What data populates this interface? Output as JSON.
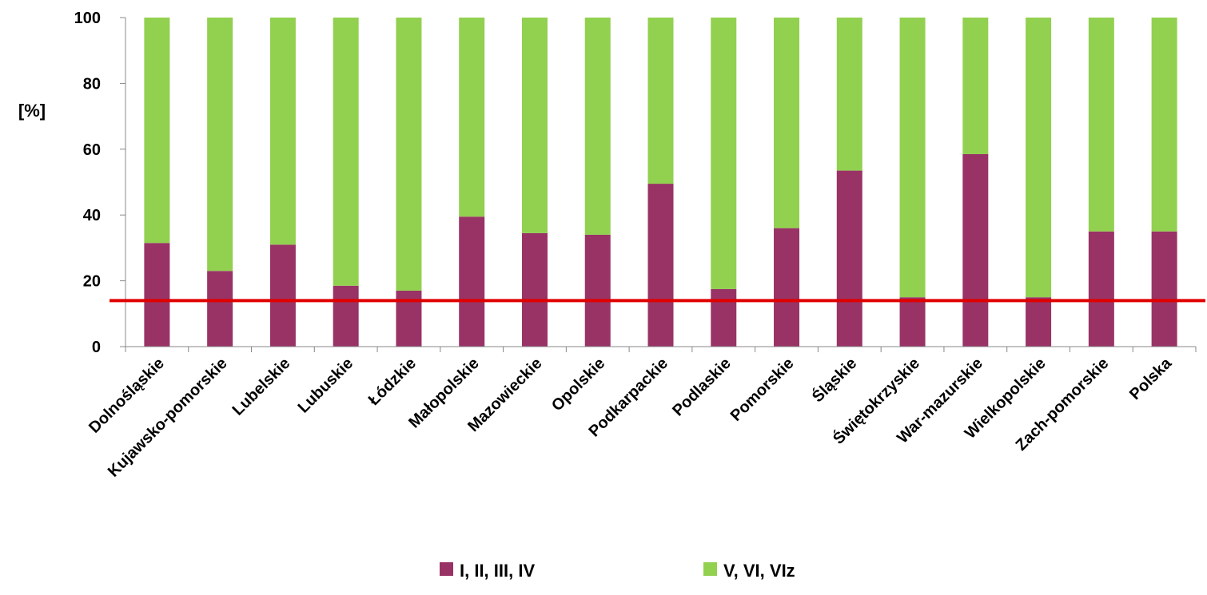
{
  "chart_data": {
    "type": "bar",
    "stacked": true,
    "ylabel": "[%]",
    "ylim": [
      0,
      100
    ],
    "yticks": [
      "0",
      "20",
      "40",
      "60",
      "80",
      "100"
    ],
    "categories": [
      "Dolnośląskie",
      "Kujawsko-pomorskie",
      "Lubelskie",
      "Lubuskie",
      "Łódzkie",
      "Małopolskie",
      "Mazowieckie",
      "Opolskie",
      "Podkarpackie",
      "Podlaskie",
      "Pomorskie",
      "Śląskie",
      "Świętokrzyskie",
      "War-mazurskie",
      "Wielkopolskie",
      "Zach-pomorskie",
      "Polska"
    ],
    "series": [
      {
        "name": "I, II, III, IV",
        "color": "#993366",
        "values": [
          31.5,
          23,
          31,
          18.5,
          17,
          39.5,
          34.5,
          34,
          49.5,
          17.5,
          36,
          53.5,
          15,
          58.5,
          15,
          35,
          35
        ]
      },
      {
        "name": "V, VI, VIz",
        "color": "#92D050",
        "values": [
          68.5,
          77,
          69,
          81.5,
          83,
          60.5,
          65.5,
          66,
          50.5,
          82.5,
          64,
          46.5,
          85,
          41.5,
          85,
          65,
          65
        ]
      }
    ],
    "reference_line": {
      "value": 14,
      "color": "#E00000"
    },
    "legend": "bottom",
    "grid": false
  }
}
